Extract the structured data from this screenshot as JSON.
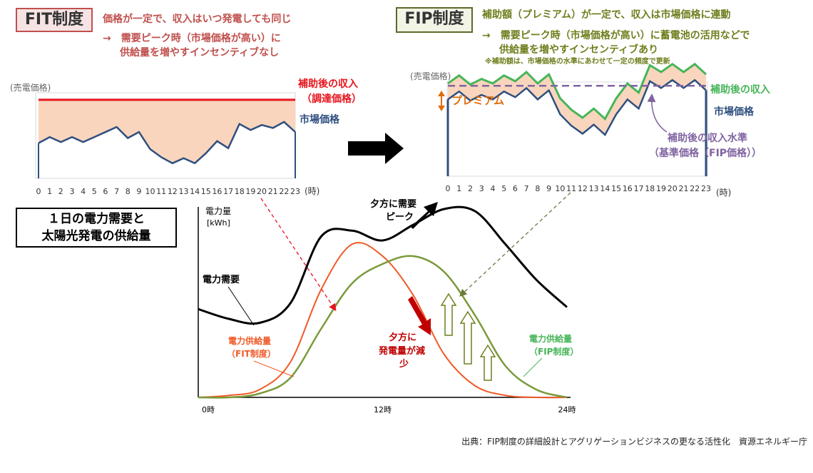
{
  "fit": {
    "title": "FIT制度",
    "line1": "価格が一定で、収入はいつ発電しても同じ",
    "line2": "→　需要ピーク時（市場価格が高い）に",
    "line3": "供給量を増やすインセンティブなし",
    "ylabel": "(売電価格)",
    "revenue_label_1": "補助後の収入",
    "revenue_label_2": "（調達価格）",
    "market_label": "市場価格",
    "x_ticks": [
      "0",
      "1",
      "2",
      "3",
      "4",
      "5",
      "6",
      "7",
      "8",
      "9",
      "10",
      "11",
      "12",
      "13",
      "14",
      "15",
      "16",
      "17",
      "18",
      "19",
      "20",
      "21",
      "22",
      "23"
    ],
    "x_unit": "(時)"
  },
  "fip": {
    "title": "FIP制度",
    "line1": "補助額（プレミアム）が一定で、収入は市場価格に連動",
    "line2": "→　需要ピーク時（市場価格が高い）に蓄電池の活用などで",
    "line3": "供給量を増やすインセンティブあり",
    "note": "※補助額は、市場価格の水準にあわせて一定の頻度で更新",
    "ylabel": "(売電価格)",
    "premium_label": "プレミアム",
    "revenue_label": "補助後の収入",
    "market_label": "市場価格",
    "base_label_1": "補助後の収入水準",
    "base_label_2": "（基準価格（FIP価格））",
    "x_ticks": [
      "0",
      "1",
      "2",
      "3",
      "4",
      "5",
      "6",
      "7",
      "8",
      "9",
      "10",
      "11",
      "12",
      "13",
      "14",
      "15",
      "16",
      "17",
      "18",
      "19",
      "20",
      "21",
      "22",
      "23"
    ],
    "x_unit": "(時)"
  },
  "daily": {
    "box_line1": "１日の電力需要と",
    "box_line2": "太陽光発電の供給量",
    "ylabel_1": "電力量",
    "ylabel_2": "[kWh]",
    "demand_label": "電力需要",
    "evening_peak_1": "夕方に需要",
    "evening_peak_2": "ピーク",
    "evening_drop_1": "夕方に",
    "evening_drop_2": "発電量が減",
    "evening_drop_3": "少",
    "fit_supply_1": "電力供給量",
    "fit_supply_2": "（FIT制度）",
    "fip_supply_1": "電力供給量",
    "fip_supply_2": "（FIP制度）",
    "x_ticks": [
      "0時",
      "12時",
      "24時"
    ]
  },
  "source": "出典：FIP制度の詳細設計とアグリゲーションビジネスの更なる活性化　資源エネルギー庁",
  "colors": {
    "fit_red": "#c0504d",
    "revenue_red": "#e8141c",
    "market_blue": "#2f4f7f",
    "fill_peach": "#f9d5bd",
    "fip_green": "#46b558",
    "premium_orange": "#e36c0a",
    "base_purple": "#8064a2",
    "fit_supply": "#f05a28",
    "fip_supply": "#7a9a3a",
    "drop_arrow": "#c00000"
  },
  "chart_data": [
    {
      "type": "line",
      "title": "FIT制度",
      "x": [
        0,
        1,
        2,
        3,
        4,
        5,
        6,
        7,
        8,
        9,
        10,
        11,
        12,
        13,
        14,
        15,
        16,
        17,
        18,
        19,
        20,
        21,
        22,
        23
      ],
      "series": [
        {
          "name": "補助後の収入（調達価格）",
          "values": [
            108,
            108,
            108,
            108,
            108,
            108,
            108,
            108,
            108,
            108,
            108,
            108,
            108,
            108,
            108,
            108,
            108,
            108,
            108,
            108,
            108,
            108,
            108,
            108
          ]
        },
        {
          "name": "市場価格",
          "values": [
            65,
            71,
            66,
            71,
            66,
            71,
            76,
            81,
            70,
            76,
            59,
            51,
            45,
            50,
            45,
            55,
            67,
            60,
            84,
            78,
            83,
            80,
            86,
            76
          ]
        }
      ],
      "ylim": [
        30,
        115
      ]
    },
    {
      "type": "line",
      "title": "FIP制度",
      "x": [
        0,
        1,
        2,
        3,
        4,
        5,
        6,
        7,
        8,
        9,
        10,
        11,
        12,
        13,
        14,
        15,
        16,
        17,
        18,
        19,
        20,
        21,
        22,
        23
      ],
      "series": [
        {
          "name": "市場価格",
          "values": [
            96,
            103,
            95,
            100,
            96,
            103,
            98,
            106,
            96,
            104,
            83,
            73,
            66,
            74,
            65,
            83,
            96,
            88,
            112,
            106,
            113,
            106,
            113,
            104
          ]
        },
        {
          "name": "補助後の収入",
          "values": [
            110,
            117,
            109,
            114,
            110,
            117,
            112,
            120,
            110,
            118,
            97,
            87,
            80,
            88,
            79,
            97,
            110,
            102,
            126,
            120,
            127,
            120,
            127,
            118
          ]
        },
        {
          "name": "補助後の収入水準（基準価格（FIP価格））",
          "values": [
            108,
            108,
            108,
            108,
            108,
            108,
            108,
            108,
            108,
            108,
            108,
            108,
            108,
            108,
            108,
            108,
            108,
            108,
            108,
            108,
            108,
            108,
            108,
            108
          ]
        }
      ],
      "ylim": [
        30,
        130
      ]
    },
    {
      "type": "line",
      "title": "１日の電力需要と太陽光発電の供給量",
      "xlabel": "",
      "ylabel": "電力量 [kWh]",
      "x": [
        0,
        2,
        4,
        6,
        8,
        10,
        12,
        14,
        16,
        18,
        20,
        22,
        24
      ],
      "series": [
        {
          "name": "電力需要",
          "values": [
            45,
            40,
            38,
            48,
            82,
            85,
            80,
            88,
            96,
            95,
            78,
            60,
            46
          ]
        },
        {
          "name": "電力供給量（FIT制度）",
          "values": [
            0,
            1,
            4,
            18,
            55,
            78,
            72,
            52,
            22,
            6,
            1,
            0,
            0
          ]
        },
        {
          "name": "電力供給量（FIP制度）",
          "values": [
            0,
            0,
            2,
            10,
            35,
            58,
            68,
            72,
            64,
            42,
            16,
            4,
            0
          ]
        }
      ],
      "ylim": [
        0,
        100
      ]
    }
  ]
}
